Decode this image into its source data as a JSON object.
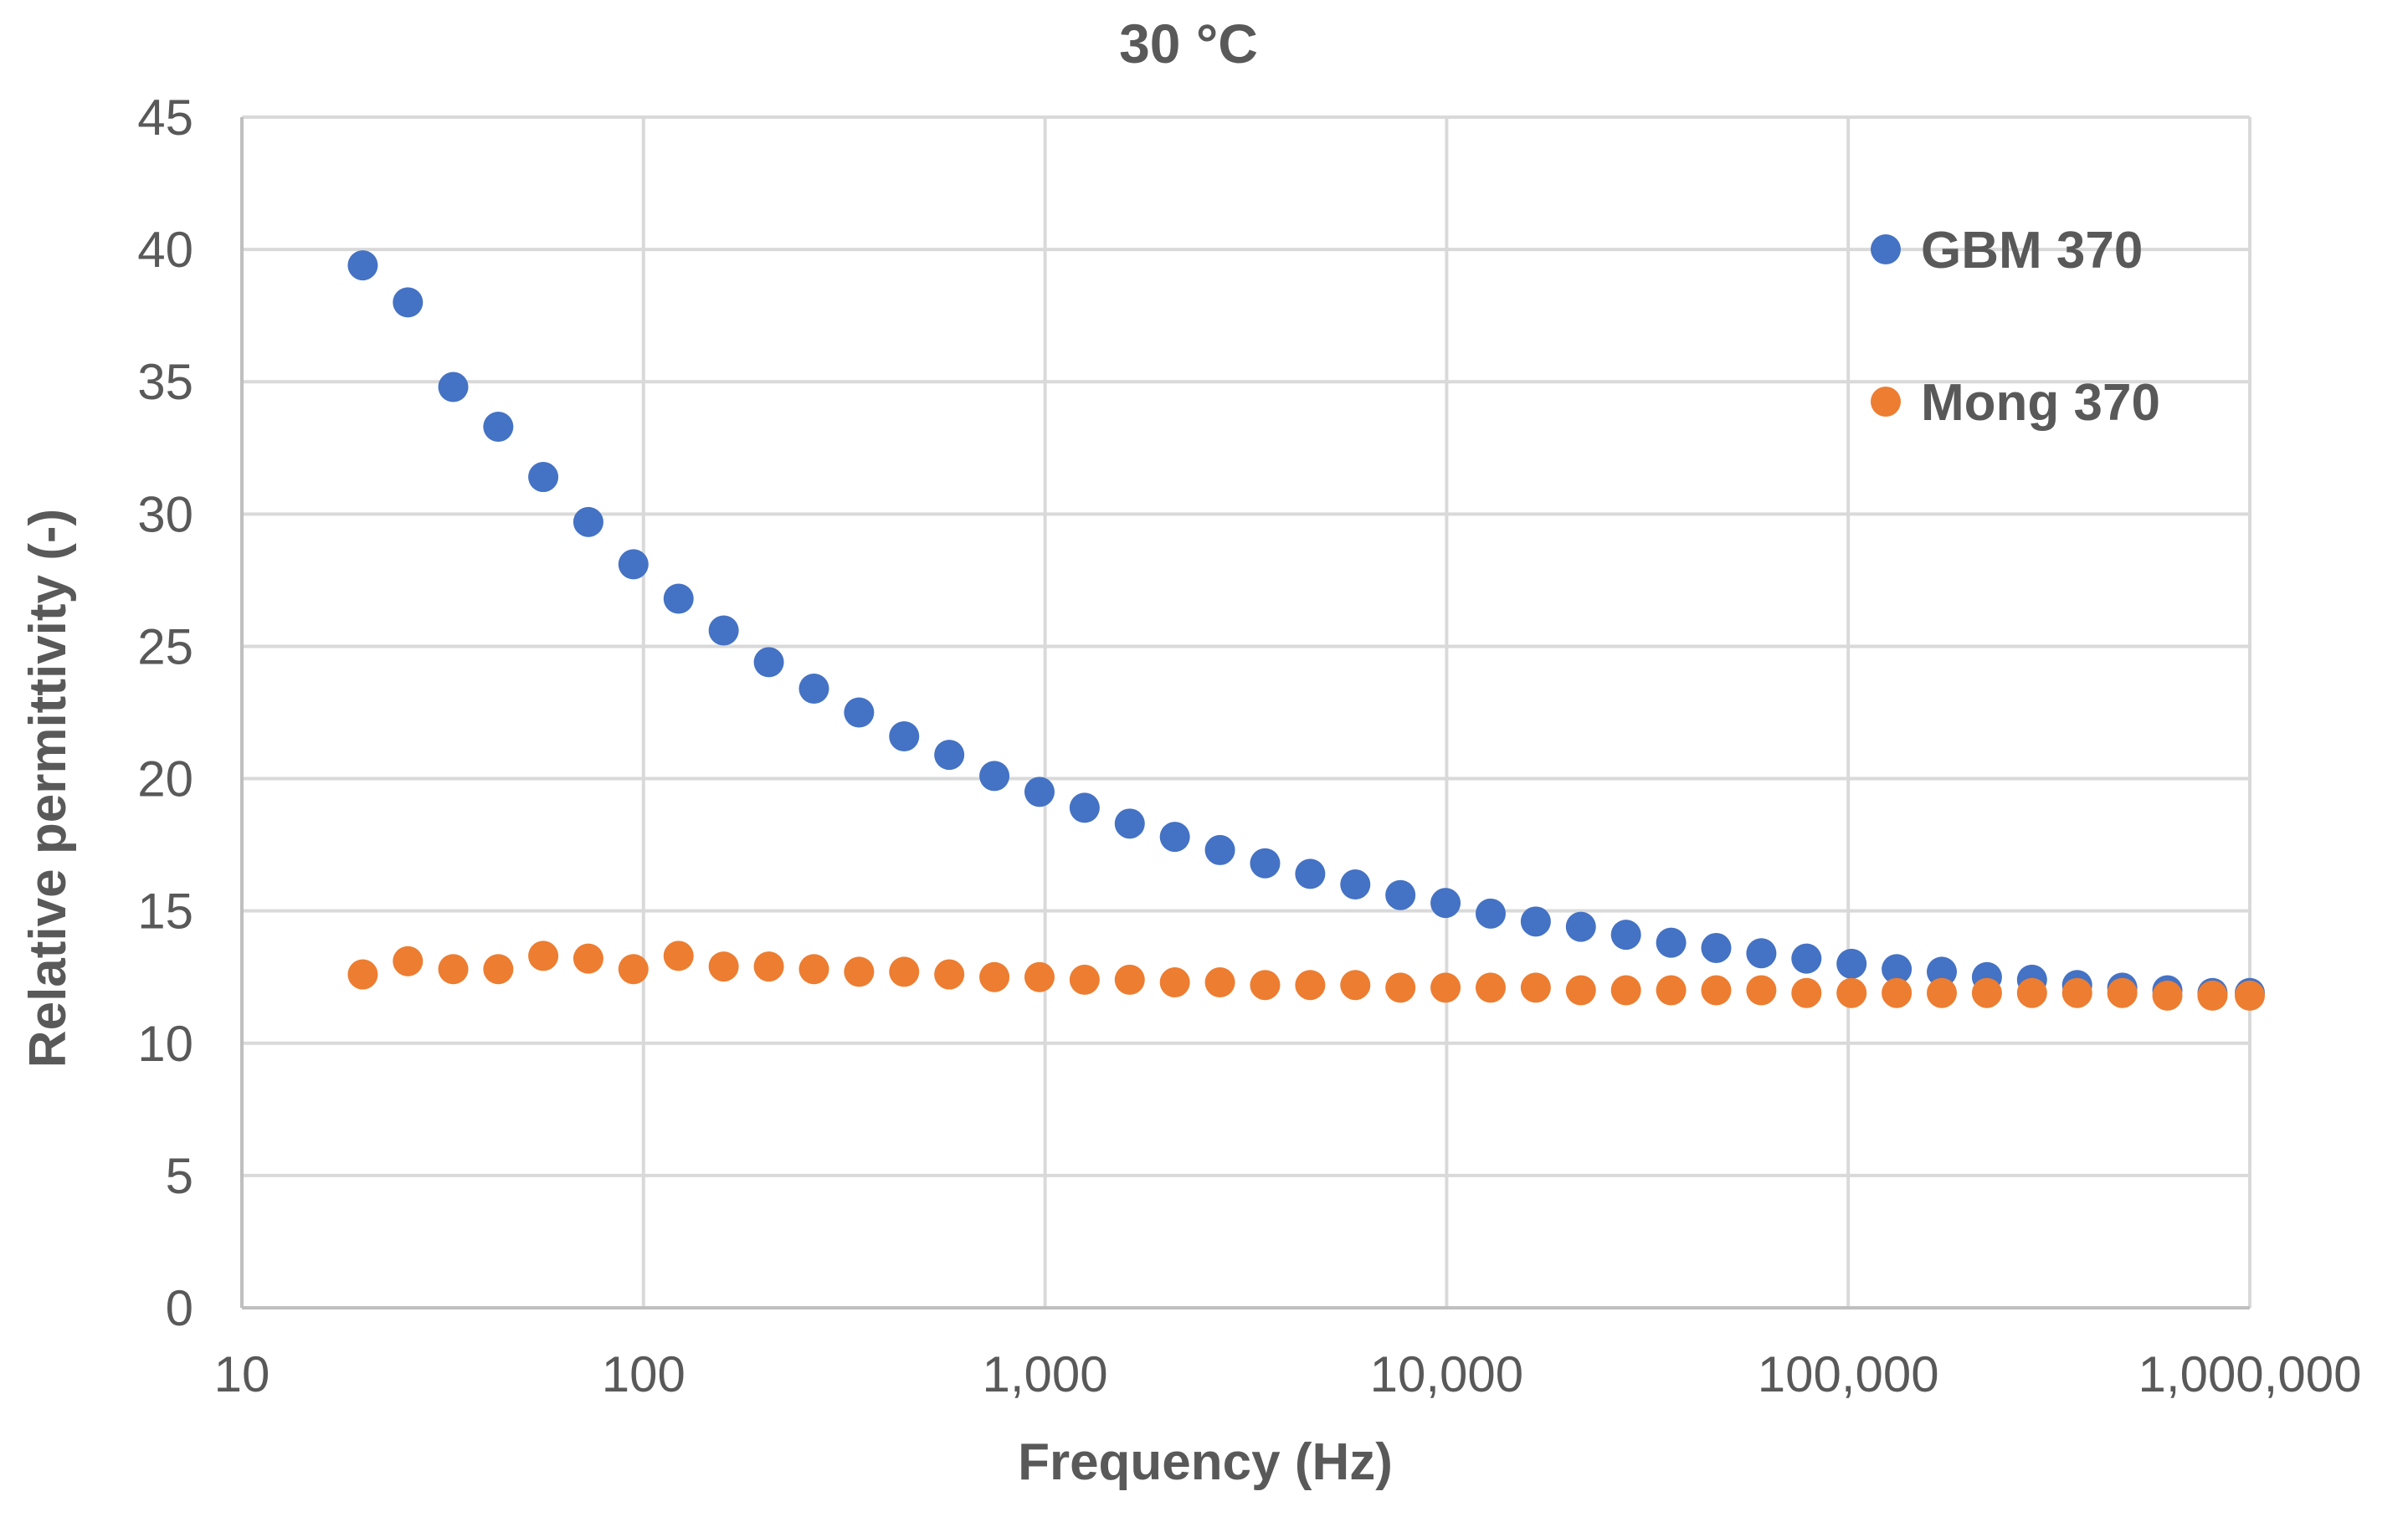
{
  "chart_data": {
    "type": "scatter",
    "title": "30 °C",
    "xlabel": "Frequency (Hz)",
    "ylabel": "Relative permittivity (-)",
    "xscale": "log",
    "xlim": [
      10,
      1000000
    ],
    "ylim": [
      0,
      45
    ],
    "x_ticks": [
      10,
      100,
      1000,
      10000,
      100000,
      1000000
    ],
    "x_tick_labels": [
      "10",
      "100",
      "1,000",
      "10,000",
      "100,000",
      "1,000,000"
    ],
    "y_ticks": [
      0,
      5,
      10,
      15,
      20,
      25,
      30,
      35,
      40,
      45
    ],
    "y_tick_labels": [
      "0",
      "5",
      "10",
      "15",
      "20",
      "25",
      "30",
      "35",
      "40",
      "45"
    ],
    "grid": true,
    "legend_position": "top-right",
    "x": [
      20,
      25.9,
      33.6,
      43.5,
      56.3,
      72.9,
      94.4,
      122.3,
      158.4,
      205.2,
      265.8,
      344.2,
      445.8,
      577.4,
      747.9,
      968.7,
      1254.6,
      1625,
      2104.7,
      2726.1,
      3530.9,
      4573.3,
      5923.4,
      7672.1,
      9937,
      12870.5,
      16670.2,
      21591.4,
      27965.5,
      36221.5,
      46914.7,
      60764.6,
      78703.3,
      101937.8,
      132031.6,
      171009.7,
      221494.7,
      286883.8,
      371576.7,
      481272.9,
      623353.4,
      807378.4,
      1000000
    ],
    "series": [
      {
        "name": "GBM 370",
        "color": "#4472c4",
        "values": [
          39.4,
          38.0,
          34.8,
          33.3,
          31.4,
          29.7,
          28.1,
          26.8,
          25.6,
          24.4,
          23.4,
          22.5,
          21.6,
          20.9,
          20.1,
          19.5,
          18.9,
          18.3,
          17.8,
          17.3,
          16.8,
          16.4,
          16.0,
          15.6,
          15.3,
          14.9,
          14.6,
          14.4,
          14.1,
          13.8,
          13.6,
          13.4,
          13.2,
          13.0,
          12.8,
          12.7,
          12.5,
          12.4,
          12.2,
          12.1,
          12.0,
          11.9,
          11.9
        ]
      },
      {
        "name": "Mong 370",
        "color": "#ed7d31",
        "values": [
          12.6,
          13.1,
          12.8,
          12.8,
          13.3,
          13.2,
          12.8,
          13.3,
          12.9,
          12.9,
          12.8,
          12.7,
          12.7,
          12.6,
          12.5,
          12.5,
          12.4,
          12.4,
          12.3,
          12.3,
          12.2,
          12.2,
          12.2,
          12.1,
          12.1,
          12.1,
          12.1,
          12.0,
          12.0,
          12.0,
          12.0,
          12.0,
          11.9,
          11.9,
          11.9,
          11.9,
          11.9,
          11.9,
          11.9,
          11.9,
          11.8,
          11.8,
          11.8
        ]
      }
    ]
  }
}
